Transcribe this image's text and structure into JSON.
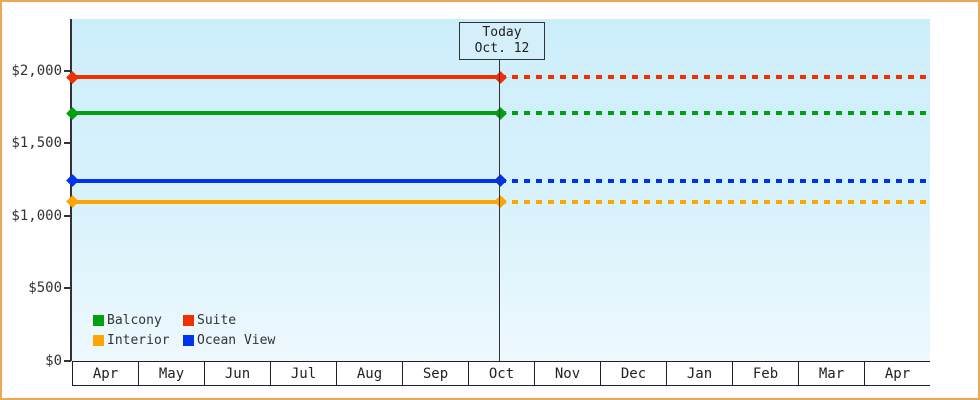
{
  "widget": {
    "kind": "price-history-chart",
    "frame_border_color": "#e9a85c",
    "plot_bg_top": "#cceefb",
    "plot_bg_bottom": "#eef9fe",
    "axis_color": "#333333"
  },
  "today_marker": {
    "line1": "Today",
    "line2": "Oct. 12"
  },
  "chart_data": {
    "type": "line",
    "title": "",
    "xlabel": "",
    "ylabel": "",
    "x_categories": [
      "Apr",
      "May",
      "Jun",
      "Jul",
      "Aug",
      "Sep",
      "Oct",
      "Nov",
      "Dec",
      "Jan",
      "Feb",
      "Mar",
      "Apr"
    ],
    "y_axis": {
      "tick_labels": [
        "$0",
        "$500",
        "$1,000",
        "$1,500",
        "$2,000"
      ],
      "tick_values": [
        0,
        500,
        1000,
        1500,
        2000
      ],
      "ylim": [
        0,
        2350
      ],
      "grid": false
    },
    "today": {
      "month": "Oct",
      "day": 12
    },
    "line_style": {
      "before_today": "solid",
      "after_today": "dotted",
      "marker": "diamond"
    },
    "series": [
      {
        "name": "Suite",
        "color": "#f03000",
        "value": 1955
      },
      {
        "name": "Balcony",
        "color": "#00a010",
        "value": 1705
      },
      {
        "name": "Ocean View",
        "color": "#0033ee",
        "value": 1240
      },
      {
        "name": "Interior",
        "color": "#ffa500",
        "value": 1095
      }
    ],
    "legend": {
      "position": "bottom-left",
      "items": [
        {
          "label": "Balcony",
          "color": "#00a010"
        },
        {
          "label": "Suite",
          "color": "#f03000"
        },
        {
          "label": "Interior",
          "color": "#ffa500"
        },
        {
          "label": "Ocean View",
          "color": "#0033ee"
        }
      ]
    }
  }
}
